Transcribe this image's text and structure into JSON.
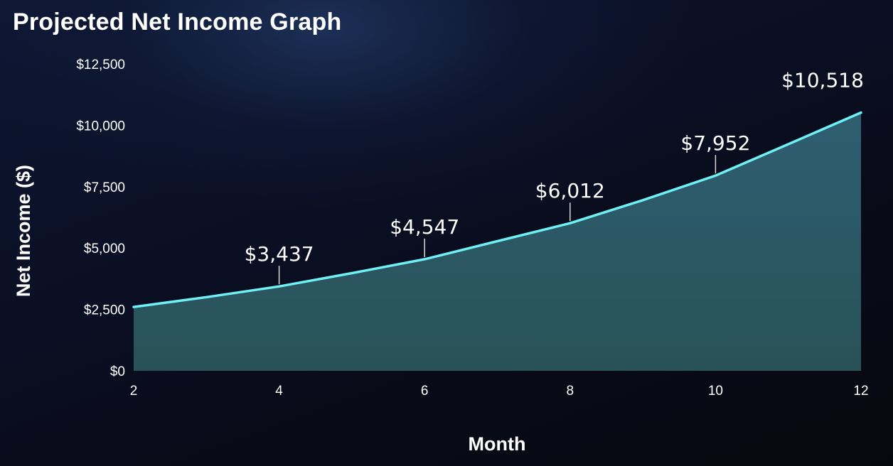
{
  "chart_data": {
    "type": "area",
    "title": "Projected Net Income Graph",
    "xlabel": "Month",
    "ylabel": "Net Income ($)",
    "x": [
      2,
      3,
      4,
      5,
      6,
      7,
      8,
      9,
      10,
      11,
      12
    ],
    "y": [
      2600,
      3000,
      3437,
      3980,
      4547,
      5280,
      6012,
      6950,
      7952,
      9230,
      10518
    ],
    "xlim": [
      2,
      12
    ],
    "ylim": [
      0,
      12500
    ],
    "x_ticks": [
      "2",
      "4",
      "6",
      "8",
      "10",
      "12"
    ],
    "y_ticks": [
      "$0",
      "$2,500",
      "$5,000",
      "$7,500",
      "$10,000",
      "$12,500"
    ],
    "annotations": [
      {
        "x": 4,
        "y": 3437,
        "text": "$3,437"
      },
      {
        "x": 6,
        "y": 4547,
        "text": "$4,547"
      },
      {
        "x": 8,
        "y": 6012,
        "text": "$6,012"
      },
      {
        "x": 10,
        "y": 7952,
        "text": "$7,952"
      },
      {
        "x": 12,
        "y": 10518,
        "text": "$10,518"
      }
    ],
    "grid": false,
    "colors": {
      "line": "#6ef0f4",
      "fill_top": "#2f5e72",
      "fill_bottom": "#295257"
    }
  }
}
